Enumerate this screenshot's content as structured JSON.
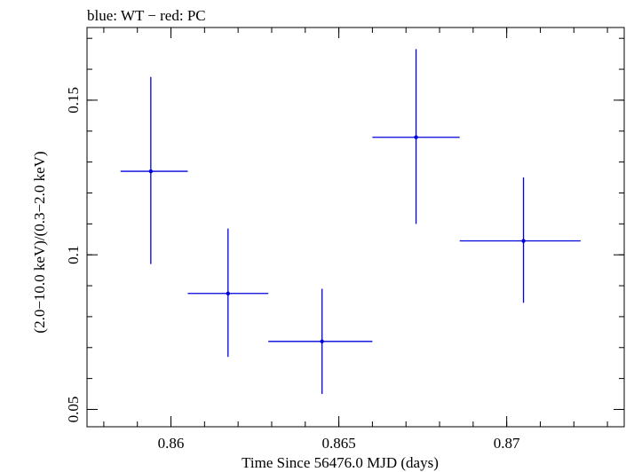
{
  "chart_data": {
    "type": "scatter",
    "title": "blue: WT − red: PC",
    "xlabel": "Time Since 56476.0 MJD (days)",
    "ylabel": "(2.0−10.0 keV)/(0.3−2.0 keV)",
    "xlim": [
      0.8575,
      0.8735
    ],
    "ylim": [
      0.0444,
      0.1735
    ],
    "x_ticks": [
      0.86,
      0.865,
      0.87
    ],
    "x_tick_labels": [
      "0.86",
      "0.865",
      "0.87"
    ],
    "y_ticks": [
      0.05,
      0.1,
      0.15
    ],
    "y_tick_labels": [
      "0.05",
      "0.1",
      "0.15"
    ],
    "grid": false,
    "series": [
      {
        "color": "#0000dd",
        "points": [
          {
            "x": 0.8594,
            "xerr_low": 0.8585,
            "xerr_high": 0.8605,
            "y": 0.127,
            "yerr_low": 0.097,
            "yerr_high": 0.1575
          },
          {
            "x": 0.8617,
            "xerr_low": 0.8605,
            "xerr_high": 0.8629,
            "y": 0.0875,
            "yerr_low": 0.067,
            "yerr_high": 0.1085
          },
          {
            "x": 0.8645,
            "xerr_low": 0.8629,
            "xerr_high": 0.866,
            "y": 0.072,
            "yerr_low": 0.055,
            "yerr_high": 0.089
          },
          {
            "x": 0.8673,
            "xerr_low": 0.866,
            "xerr_high": 0.8686,
            "y": 0.138,
            "yerr_low": 0.11,
            "yerr_high": 0.1665
          },
          {
            "x": 0.8705,
            "xerr_low": 0.8686,
            "xerr_high": 0.8722,
            "y": 0.1045,
            "yerr_low": 0.0845,
            "yerr_high": 0.125
          }
        ]
      }
    ]
  }
}
